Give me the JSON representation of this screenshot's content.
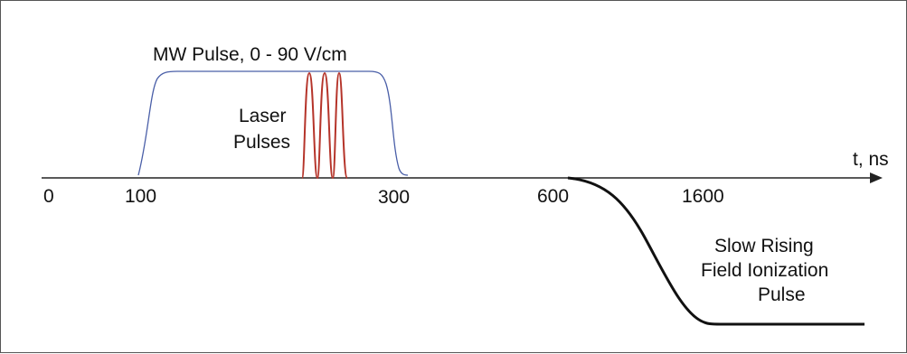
{
  "diagram": {
    "mw_pulse": {
      "label": "MW Pulse, 0 - 90 V/cm",
      "color": "#4a5fa8"
    },
    "laser_pulses": {
      "label_line1": "Laser",
      "label_line2": "Pulses",
      "count": 3,
      "color": "#b5342a"
    },
    "axis": {
      "label": "t, ns",
      "ticks": [
        "0",
        "100",
        "300",
        "600",
        "1600"
      ]
    },
    "ionization_pulse": {
      "label_line1": "Slow Rising",
      "label_line2": "Field Ionization",
      "label_line3": "Pulse",
      "color": "#111111"
    }
  }
}
